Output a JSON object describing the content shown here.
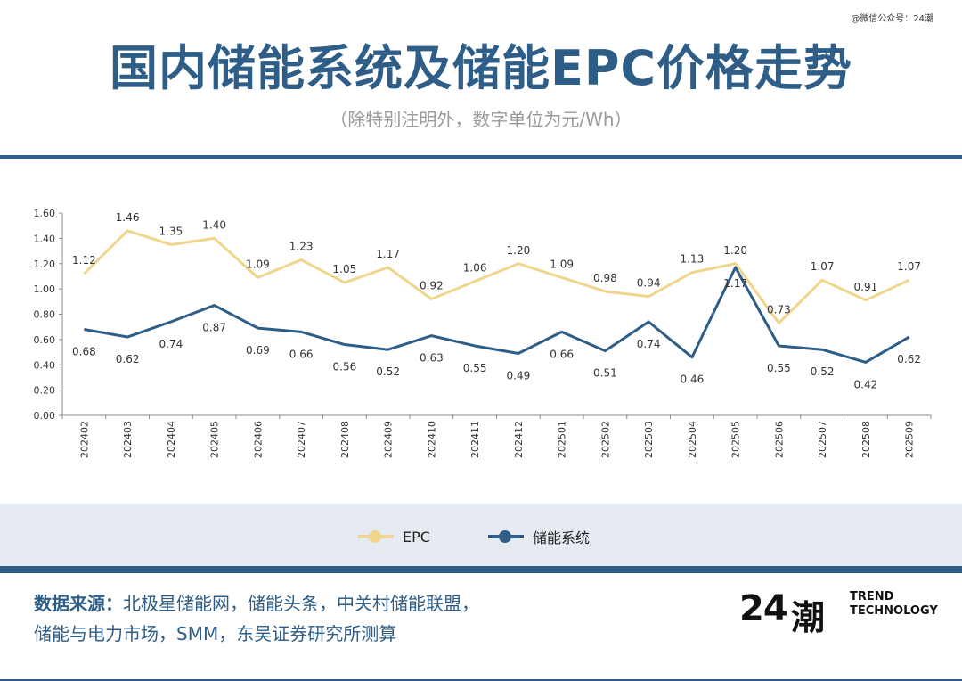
{
  "watermark": "@微信公众号：24潮",
  "header": {
    "title": "国内储能系统及储能EPC价格走势",
    "subtitle": "（除特别注明外，数字单位为元/Wh）"
  },
  "chart_data": {
    "type": "line",
    "categories": [
      "202402",
      "202403",
      "202404",
      "202405",
      "202406",
      "202407",
      "202408",
      "202409",
      "202410",
      "202411",
      "202412",
      "202501",
      "202502",
      "202503",
      "202504",
      "202505",
      "202506",
      "202507",
      "202508",
      "202509"
    ],
    "series": [
      {
        "name": "EPC",
        "color": "#f0d58c",
        "values": [
          1.12,
          1.46,
          1.35,
          1.4,
          1.09,
          1.23,
          1.05,
          1.17,
          0.92,
          1.06,
          1.2,
          1.09,
          0.98,
          0.94,
          1.13,
          1.2,
          0.73,
          1.07,
          0.91,
          1.07
        ]
      },
      {
        "name": "储能系统",
        "color": "#2e5d87",
        "values": [
          0.68,
          0.62,
          0.74,
          0.87,
          0.69,
          0.66,
          0.56,
          0.52,
          0.63,
          0.55,
          0.49,
          0.66,
          0.51,
          0.74,
          0.46,
          1.17,
          0.55,
          0.52,
          0.42,
          0.62
        ]
      }
    ],
    "y_ticks": [
      "0.00",
      "0.20",
      "0.40",
      "0.60",
      "0.80",
      "1.00",
      "1.20",
      "1.40",
      "1.60"
    ],
    "ylim": [
      0,
      1.6
    ],
    "grid": false,
    "legend_position": "bottom"
  },
  "legend": {
    "epc_label": "EPC",
    "system_label": "储能系统"
  },
  "footer": {
    "source_label": "数据来源：",
    "source_text_line1": "北极星储能网，储能头条，中关村储能联盟，",
    "source_text_line2": "储能与电力市场，SMM，东吴证券研究所测算",
    "logo_number": "24",
    "logo_mark": "潮",
    "logo_word1": "TREND",
    "logo_word2": "TECHNOLOGY"
  }
}
